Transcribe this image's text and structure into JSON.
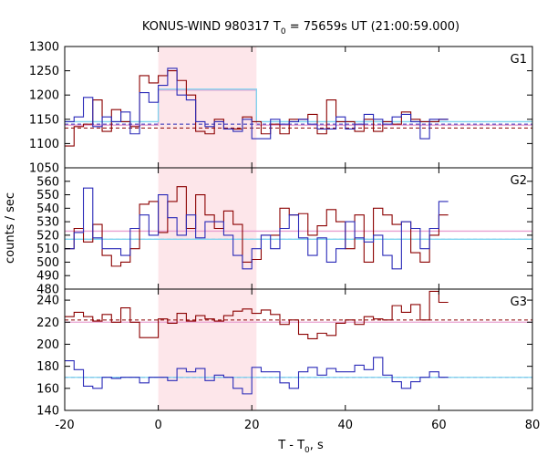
{
  "chart_data": {
    "type": "line",
    "title": {
      "prefix": "KONUS-WIND 980317 T",
      "sub": "0",
      "suffix": " = 75659s UT (21:00:59.000)"
    },
    "xlabel": {
      "main": "T - T",
      "sub": "0",
      "suffix": ", s"
    },
    "ylabel": "counts / sec",
    "xlim": [
      -20,
      80
    ],
    "xticks": [
      -20,
      0,
      20,
      40,
      60,
      80
    ],
    "bin_width": 2,
    "highlight": {
      "from": 0,
      "to": 21,
      "color": "#fde6ea"
    },
    "colors": {
      "red_series": "#8b0000",
      "blue_series": "#2a2ab8",
      "red_background": "#8b0000",
      "blue_background": "#2a2ab8",
      "red_model": "#e8a0d0",
      "blue_model": "#7fd4ef"
    },
    "panels": [
      {
        "label": "G1",
        "ylim": [
          1050,
          1300
        ],
        "yticks": [
          1050,
          1100,
          1150,
          1200,
          1250,
          1300
        ],
        "bin_start": -20,
        "red": [
          1095,
          1135,
          1140,
          1190,
          1125,
          1170,
          1145,
          1135,
          1240,
          1225,
          1240,
          1250,
          1230,
          1200,
          1125,
          1120,
          1150,
          1130,
          1130,
          1155,
          1145,
          1120,
          1140,
          1120,
          1150,
          1150,
          1160,
          1120,
          1190,
          1145,
          1145,
          1125,
          1150,
          1125,
          1145,
          1140,
          1165,
          1150,
          1145,
          1145,
          1150
        ],
        "blue": [
          1145,
          1155,
          1195,
          1135,
          1155,
          1145,
          1165,
          1120,
          1205,
          1185,
          1220,
          1255,
          1200,
          1190,
          1145,
          1135,
          1145,
          1130,
          1125,
          1150,
          1110,
          1110,
          1150,
          1140,
          1145,
          1150,
          1140,
          1130,
          1130,
          1155,
          1130,
          1140,
          1160,
          1150,
          1140,
          1155,
          1160,
          1145,
          1110,
          1150,
          1150
        ],
        "red_bg": 1132,
        "blue_bg": 1140,
        "red_model": {
          "in": 1210,
          "out": 1138
        },
        "blue_model": {
          "in": 1212,
          "out": 1145
        }
      },
      {
        "label": "G2",
        "ylim": [
          480,
          570
        ],
        "yticks": [
          480,
          490,
          500,
          510,
          520,
          530,
          540,
          550,
          560
        ],
        "bin_start": -20,
        "red": [
          510,
          525,
          515,
          528,
          505,
          497,
          500,
          510,
          543,
          545,
          522,
          545,
          556,
          525,
          550,
          535,
          525,
          538,
          528,
          500,
          502,
          520,
          520,
          540,
          535,
          536,
          520,
          527,
          539,
          530,
          510,
          535,
          500,
          540,
          535,
          528,
          530,
          507,
          500,
          520,
          535
        ],
        "blue": [
          510,
          522,
          555,
          518,
          510,
          510,
          505,
          525,
          535,
          520,
          550,
          533,
          520,
          535,
          518,
          530,
          530,
          520,
          505,
          495,
          510,
          520,
          510,
          525,
          535,
          518,
          505,
          518,
          500,
          510,
          530,
          518,
          515,
          520,
          505,
          495,
          530,
          525,
          510,
          525,
          545
        ],
        "red_bg": 523,
        "blue_bg": 517,
        "red_model": {
          "in": 523,
          "out": 523
        },
        "blue_model": {
          "in": 517,
          "out": 517
        }
      },
      {
        "label": "G3",
        "ylim": [
          140,
          250
        ],
        "yticks": [
          140,
          160,
          180,
          200,
          220,
          240
        ],
        "bin_start": -20,
        "red": [
          225,
          229,
          225,
          221,
          227,
          220,
          233,
          220,
          206,
          206,
          223,
          219,
          228,
          221,
          226,
          223,
          221,
          226,
          230,
          232,
          228,
          231,
          227,
          218,
          222,
          209,
          205,
          210,
          208,
          219,
          222,
          218,
          225,
          223,
          222,
          235,
          229,
          236,
          222,
          248,
          238
        ],
        "blue": [
          185,
          177,
          162,
          160,
          170,
          169,
          170,
          170,
          165,
          170,
          170,
          167,
          178,
          175,
          178,
          167,
          172,
          170,
          160,
          155,
          179,
          175,
          175,
          165,
          160,
          175,
          179,
          172,
          178,
          175,
          175,
          181,
          177,
          188,
          172,
          166,
          160,
          166,
          170,
          175,
          170
        ],
        "red_bg": 222,
        "blue_bg": 170,
        "red_model": {
          "in": 220,
          "out": 220
        },
        "blue_model": {
          "in": 170,
          "out": 170
        }
      }
    ]
  }
}
